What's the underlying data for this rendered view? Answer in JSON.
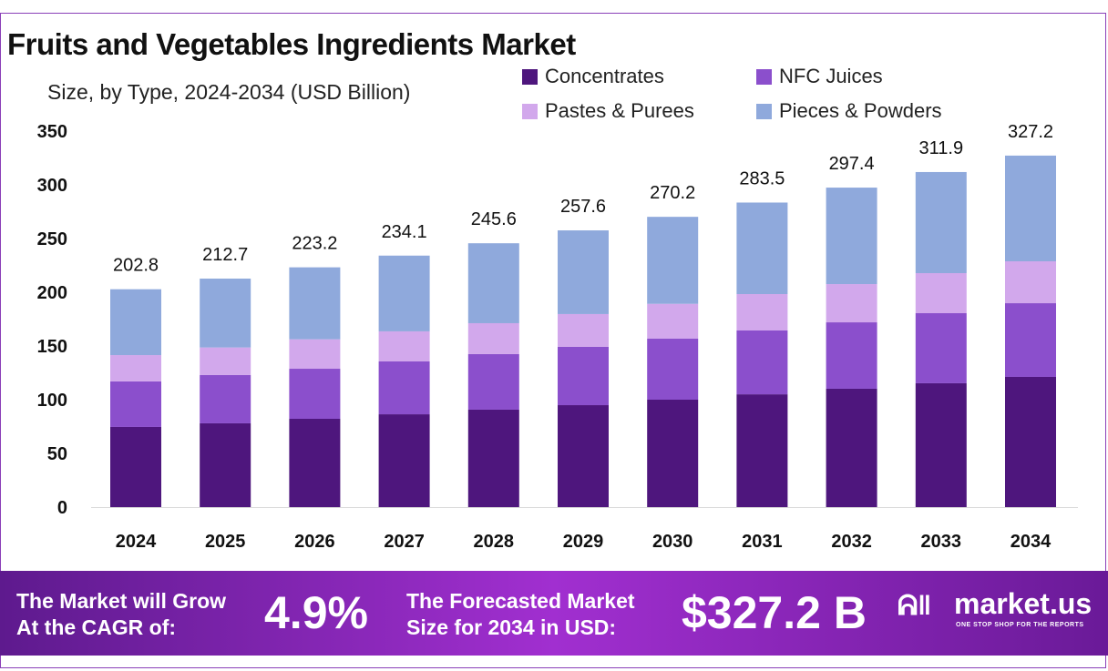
{
  "chart_data": {
    "type": "bar",
    "stacked": true,
    "title": "Fruits and Vegetables Ingredients Market",
    "subtitle": "Size, by Type, 2024-2034 (USD Billion)",
    "categories": [
      "2024",
      "2025",
      "2026",
      "2027",
      "2028",
      "2029",
      "2030",
      "2031",
      "2032",
      "2033",
      "2034"
    ],
    "series": [
      {
        "name": "Concentrates",
        "color": "#4e167d",
        "values": [
          74.6,
          78.0,
          82.2,
          86.4,
          90.7,
          94.9,
          100.0,
          105.0,
          110.2,
          115.3,
          121.2
        ]
      },
      {
        "name": "NFC Juices",
        "color": "#8b4fcc",
        "values": [
          42.4,
          44.9,
          46.6,
          49.2,
          51.7,
          54.3,
          56.8,
          59.4,
          61.8,
          65.2,
          68.6
        ]
      },
      {
        "name": "Pastes & Purees",
        "color": "#d2a8ec",
        "values": [
          24.5,
          25.7,
          27.4,
          28.0,
          28.8,
          30.5,
          32.4,
          33.9,
          35.6,
          37.3,
          39.0
        ]
      },
      {
        "name": "Pieces & Powders",
        "color": "#8fa9dc",
        "values": [
          61.3,
          64.1,
          67.0,
          70.5,
          74.4,
          77.9,
          81.0,
          85.2,
          89.8,
          94.1,
          98.4
        ]
      }
    ],
    "totals": [
      "202.8",
      "212.7",
      "223.2",
      "234.1",
      "245.6",
      "257.6",
      "270.2",
      "283.5",
      "297.4",
      "311.9",
      "327.2"
    ],
    "yticks": [
      "0",
      "50",
      "100",
      "150",
      "200",
      "250",
      "300",
      "350"
    ],
    "ylim": [
      0,
      350
    ],
    "grid": false,
    "legend_position": "top-right"
  },
  "footer": {
    "cagr_label_1": "The Market will Grow",
    "cagr_label_2": "At the CAGR of:",
    "cagr_value": "4.9%",
    "forecast_label_1": "The Forecasted Market",
    "forecast_label_2": "Size for 2034 in USD:",
    "forecast_value": "$327.2 B",
    "brand": "market.us",
    "brand_tagline": "ONE STOP SHOP FOR THE REPORTS"
  }
}
